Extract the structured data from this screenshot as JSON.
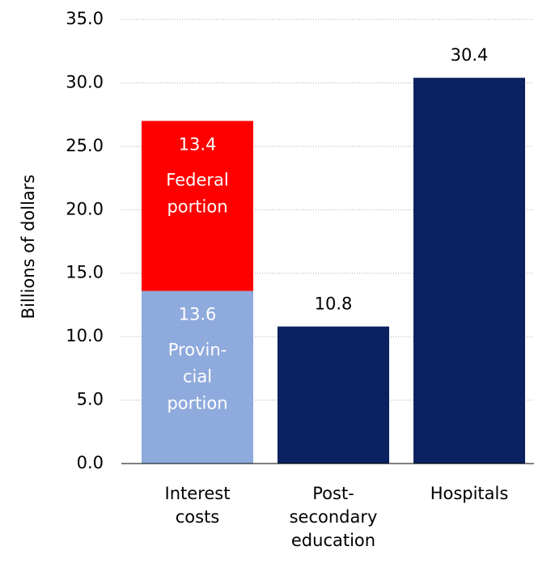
{
  "chart_data": {
    "type": "stacked_bar",
    "ylabel": "Billions of dollars",
    "categories": [
      [
        "Interest",
        "costs"
      ],
      [
        "Post-",
        "secondary",
        "education"
      ],
      [
        "Hospitals"
      ]
    ],
    "series": [
      {
        "name": [
          "Provin-",
          "cial",
          "portion"
        ],
        "color": "#8faadc",
        "values": [
          13.6,
          null,
          null
        ]
      },
      {
        "name": [
          "Federal",
          "portion"
        ],
        "color": "#ff0000",
        "values": [
          13.4,
          null,
          null
        ]
      },
      {
        "color": "#0c2260",
        "values": [
          null,
          10.8,
          30.4
        ]
      }
    ],
    "ylim": [
      0,
      35
    ],
    "yticks": [
      {
        "value": 0,
        "label": "0.0"
      },
      {
        "value": 5,
        "label": "5.0"
      },
      {
        "value": 10,
        "label": "10.0"
      },
      {
        "value": 15,
        "label": "15.0"
      },
      {
        "value": 20,
        "label": "20.0"
      },
      {
        "value": 25,
        "label": "25.0"
      },
      {
        "value": 30,
        "label": "30.0"
      },
      {
        "value": 35,
        "label": "35.0"
      }
    ],
    "grid": true
  }
}
